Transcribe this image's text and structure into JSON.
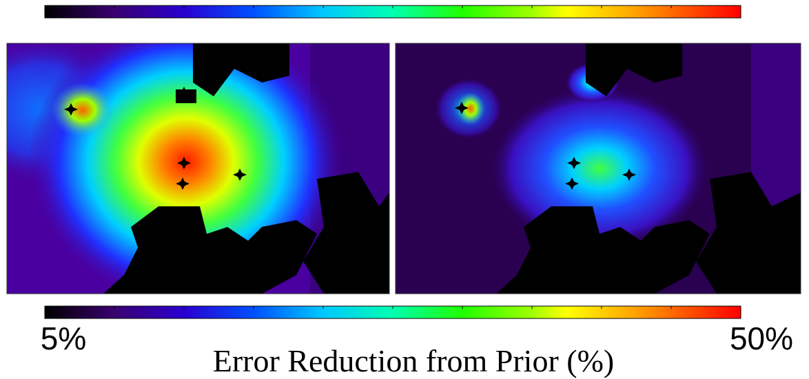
{
  "colorbar": {
    "min_label": "5%",
    "max_label": "50%",
    "label": "Error Reduction from Prior (%)"
  }
}
